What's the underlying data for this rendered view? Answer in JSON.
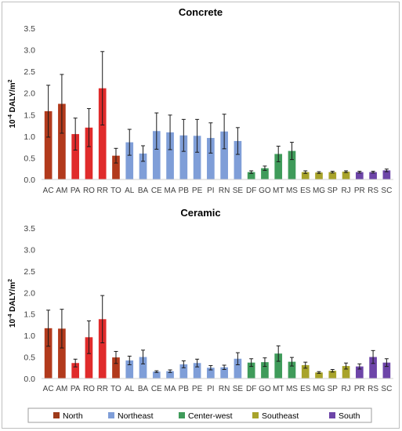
{
  "chart_data": [
    {
      "type": "bar",
      "title": "Concrete",
      "ylabel_base": "10",
      "ylabel_exp": "-4",
      "ylabel_unit": "DALY/m",
      "ylabel_unit_exp": "2",
      "ylim": [
        0,
        3.5
      ],
      "yticks": [
        "0.0",
        "0.5",
        "1.0",
        "1.5",
        "2.0",
        "2.5",
        "3.0",
        "3.5"
      ],
      "grid": false,
      "categories": [
        "AC",
        "AM",
        "PA",
        "RO",
        "RR",
        "TO",
        "AL",
        "BA",
        "CE",
        "MA",
        "PB",
        "PE",
        "PI",
        "RN",
        "SE",
        "DF",
        "GO",
        "MT",
        "MS",
        "ES",
        "MG",
        "SP",
        "RJ",
        "PR",
        "RS",
        "SC"
      ],
      "regions": [
        "North",
        "North",
        "North",
        "North",
        "North",
        "North",
        "Northeast",
        "Northeast",
        "Northeast",
        "Northeast",
        "Northeast",
        "Northeast",
        "Northeast",
        "Northeast",
        "Northeast",
        "Center-west",
        "Center-west",
        "Center-west",
        "Center-west",
        "Southeast",
        "Southeast",
        "Southeast",
        "Southeast",
        "South",
        "South",
        "South"
      ],
      "values": [
        1.58,
        1.75,
        1.05,
        1.2,
        2.11,
        0.55,
        0.86,
        0.6,
        1.12,
        1.09,
        1.02,
        1.01,
        0.96,
        1.11,
        0.89,
        0.17,
        0.26,
        0.59,
        0.66,
        0.17,
        0.16,
        0.17,
        0.18,
        0.17,
        0.17,
        0.21
      ],
      "errors": [
        0.6,
        0.68,
        0.37,
        0.44,
        0.85,
        0.17,
        0.3,
        0.18,
        0.42,
        0.4,
        0.37,
        0.38,
        0.35,
        0.4,
        0.31,
        0.03,
        0.05,
        0.18,
        0.2,
        0.03,
        0.02,
        0.02,
        0.02,
        0.02,
        0.02,
        0.03
      ]
    },
    {
      "type": "bar",
      "title": "Ceramic",
      "ylabel_base": "10",
      "ylabel_exp": "-4",
      "ylabel_unit": "DALY/m",
      "ylabel_unit_exp": "2",
      "ylim": [
        0,
        3.5
      ],
      "yticks": [
        "0.0",
        "0.5",
        "1.0",
        "1.5",
        "2.0",
        "2.5",
        "3.0",
        "3.5"
      ],
      "grid": false,
      "categories": [
        "AC",
        "AM",
        "PA",
        "RO",
        "RR",
        "TO",
        "AL",
        "BA",
        "CE",
        "MA",
        "PB",
        "PE",
        "PI",
        "RN",
        "SE",
        "DF",
        "GO",
        "MT",
        "MS",
        "ES",
        "MG",
        "SP",
        "RJ",
        "PR",
        "RS",
        "SC"
      ],
      "regions": [
        "North",
        "North",
        "North",
        "North",
        "North",
        "North",
        "Northeast",
        "Northeast",
        "Northeast",
        "Northeast",
        "Northeast",
        "Northeast",
        "Northeast",
        "Northeast",
        "Northeast",
        "Center-west",
        "Center-west",
        "Center-west",
        "Center-west",
        "Southeast",
        "Southeast",
        "Southeast",
        "Southeast",
        "South",
        "South",
        "South"
      ],
      "values": [
        1.17,
        1.16,
        0.36,
        0.96,
        1.38,
        0.49,
        0.42,
        0.5,
        0.16,
        0.17,
        0.33,
        0.36,
        0.25,
        0.26,
        0.46,
        0.37,
        0.38,
        0.58,
        0.39,
        0.31,
        0.14,
        0.18,
        0.29,
        0.28,
        0.5,
        0.37
      ],
      "errors": [
        0.42,
        0.45,
        0.09,
        0.38,
        0.55,
        0.14,
        0.1,
        0.16,
        0.02,
        0.03,
        0.08,
        0.09,
        0.05,
        0.05,
        0.14,
        0.09,
        0.1,
        0.18,
        0.1,
        0.07,
        0.02,
        0.03,
        0.07,
        0.06,
        0.15,
        0.09
      ]
    }
  ],
  "legend": {
    "placement": "bottom",
    "entries": [
      {
        "label": "North",
        "color": "#9e3a1a"
      },
      {
        "label": "Northeast",
        "color": "#7f9ed8"
      },
      {
        "label": "Center-west",
        "color": "#3f9b5a"
      },
      {
        "label": "Southeast",
        "color": "#a8a32a"
      },
      {
        "label": "South",
        "color": "#6d45a8"
      }
    ]
  },
  "colors": {
    "North": "#b23a1c",
    "North_alt": "#e02b2b",
    "Northeast": "#7f9ed8",
    "Center-west": "#3f9b5a",
    "Southeast": "#a8a32a",
    "South": "#6d45a8"
  }
}
